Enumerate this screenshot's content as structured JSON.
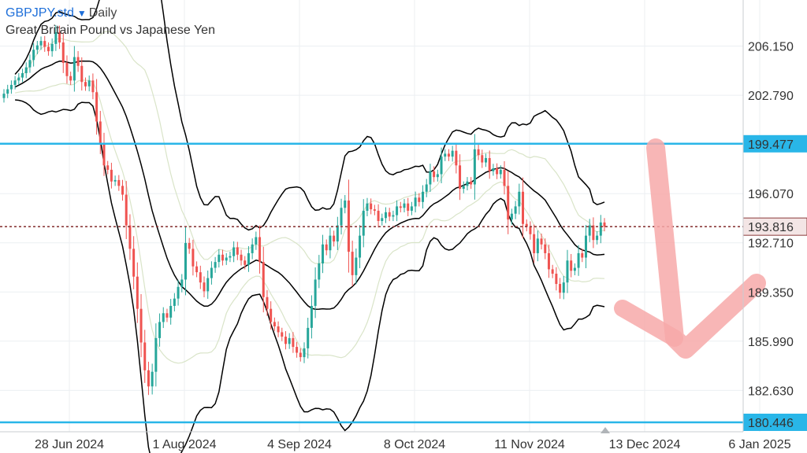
{
  "header": {
    "symbol": "GBPJPY.std",
    "timeframe": "Daily",
    "description": "Great Britain Pound vs Japanese Yen"
  },
  "colors": {
    "up": "#26a69a",
    "down": "#ef5350",
    "bands": "#000000",
    "inner_bands": "#d9e4c8",
    "level": "#29b6e8",
    "current": "#8b3a3a",
    "arrow": "#f7a9a9"
  },
  "chart_data": {
    "type": "candlestick",
    "title": "GBPJPY.std Daily",
    "subtitle": "Great Britain Pound vs Japanese Yen",
    "x_ticks": [
      "28 Jun 2024",
      "1 Aug 2024",
      "4 Sep 2024",
      "8 Oct 2024",
      "11 Nov 2024",
      "13 Dec 2024",
      "6 Jan 2025"
    ],
    "y_ticks": [
      206.15,
      202.79,
      196.07,
      192.71,
      189.35,
      185.99,
      182.63
    ],
    "ylim": [
      179.8,
      209.3
    ],
    "horizontal_levels": [
      {
        "name": "resistance",
        "value": 199.477,
        "label": "199.477"
      },
      {
        "name": "support",
        "value": 180.446,
        "label": "180.446"
      }
    ],
    "current_price": {
      "value": 193.816,
      "label": "193.816"
    },
    "series": [
      {
        "name": "price",
        "close": [
          202.9,
          203.2,
          203.5,
          203.8,
          204.0,
          204.3,
          204.7,
          205.2,
          205.9,
          206.2,
          206.5,
          206.1,
          205.8,
          206.3,
          207.1,
          206.4,
          205.0,
          204.1,
          203.8,
          205.4,
          204.8,
          203.7,
          203.4,
          203.8,
          203.0,
          201.0,
          199.5,
          198.0,
          197.7,
          196.9,
          197.0,
          196.6,
          196.0,
          193.9,
          192.3,
          190.4,
          188.2,
          185.9,
          184.0,
          182.9,
          183.9,
          186.2,
          187.3,
          187.9,
          187.6,
          188.4,
          188.9,
          189.7,
          190.2,
          192.7,
          192.3,
          191.1,
          190.7,
          190.0,
          189.4,
          190.3,
          191.0,
          191.4,
          191.9,
          191.5,
          191.7,
          191.8,
          192.4,
          191.9,
          191.5,
          191.2,
          192.0,
          192.6,
          193.1,
          191.4,
          189.0,
          188.2,
          187.3,
          187.0,
          186.6,
          186.3,
          185.8,
          186.2,
          185.6,
          185.2,
          184.9,
          185.5,
          186.9,
          188.4,
          190.2,
          191.3,
          192.6,
          192.2,
          193.2,
          192.8,
          193.9,
          195.1,
          195.6,
          192.1,
          190.5,
          191.7,
          193.2,
          194.9,
          195.4,
          195.0,
          194.9,
          194.2,
          194.4,
          194.8,
          194.5,
          194.6,
          195.2,
          195.1,
          195.4,
          194.9,
          195.2,
          195.8,
          195.5,
          196.2,
          196.7,
          197.6,
          197.2,
          197.4,
          198.6,
          198.8,
          198.6,
          199.0,
          198.0,
          196.4,
          196.6,
          196.9,
          196.7,
          199.1,
          198.7,
          198.2,
          198.5,
          197.6,
          197.8,
          197.4,
          197.7,
          196.6,
          194.3,
          194.7,
          195.2,
          196.2,
          194.0,
          193.8,
          193.3,
          192.0,
          193.0,
          192.6,
          192.0,
          190.9,
          190.6,
          189.9,
          189.3,
          190.0,
          191.5,
          190.8,
          191.0,
          192.0,
          191.7,
          193.2,
          193.9,
          192.9,
          193.2,
          194.1,
          193.8
        ]
      }
    ],
    "indicators": [
      "Bollinger Bands (outer)",
      "Bollinger Bands (inner)"
    ],
    "annotations": [
      {
        "type": "arrow",
        "direction": "down",
        "color": "pink"
      }
    ],
    "grid": true
  }
}
